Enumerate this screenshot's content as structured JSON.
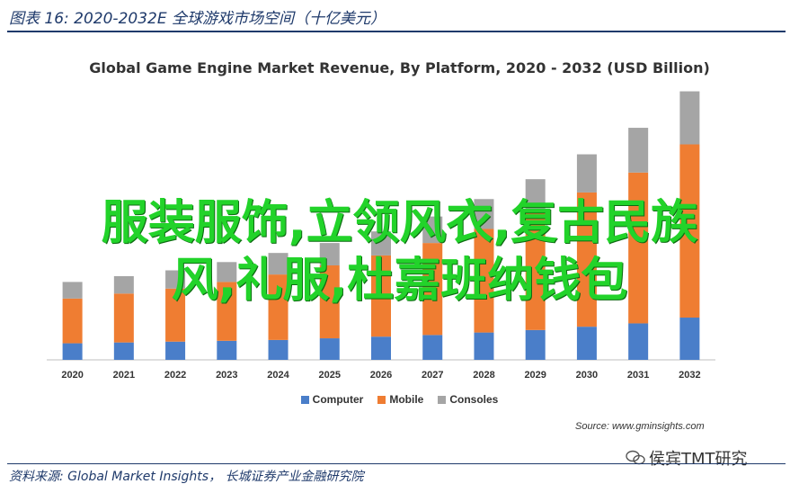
{
  "figure_title": "图表 16:  2020-2032E 全球游戏市场空间（十亿美元）",
  "source_note": "资料来源: Global Market Insights， 长城证券产业金融研究院",
  "overlay_text": {
    "line1": "服装服饰,立领风衣,复古民族",
    "line2": "风,礼服,杜嘉班纳钱包"
  },
  "watermark": {
    "text": "侯宾TMT研究",
    "icon": "wechat-icon"
  },
  "chart_data": {
    "type": "bar",
    "stacked": true,
    "title": "Global Game Engine Market Revenue, By Platform, 2020 - 2032 (USD Billion)",
    "source": "Source: www.gminsights.com",
    "categories": [
      "2020",
      "2021",
      "2022",
      "2023",
      "2024",
      "2025",
      "2026",
      "2027",
      "2028",
      "2029",
      "2030",
      "2031",
      "2032"
    ],
    "series": [
      {
        "name": "Computer",
        "color": "#4a7ec9",
        "values": [
          1.0,
          1.05,
          1.1,
          1.15,
          1.2,
          1.3,
          1.4,
          1.5,
          1.65,
          1.8,
          2.0,
          2.2,
          2.55
        ]
      },
      {
        "name": "Mobile",
        "color": "#ef7d32",
        "values": [
          2.7,
          2.95,
          3.2,
          3.55,
          3.95,
          4.4,
          4.9,
          5.55,
          6.25,
          7.05,
          8.1,
          9.1,
          10.45
        ]
      },
      {
        "name": "Consoles",
        "color": "#a5a5a5",
        "values": [
          1.0,
          1.05,
          1.1,
          1.2,
          1.3,
          1.35,
          1.45,
          1.6,
          1.8,
          2.05,
          2.3,
          2.7,
          3.2
        ]
      }
    ],
    "ylim": [
      0,
      16.5
    ],
    "grid": false,
    "legend_position": "bottom"
  }
}
